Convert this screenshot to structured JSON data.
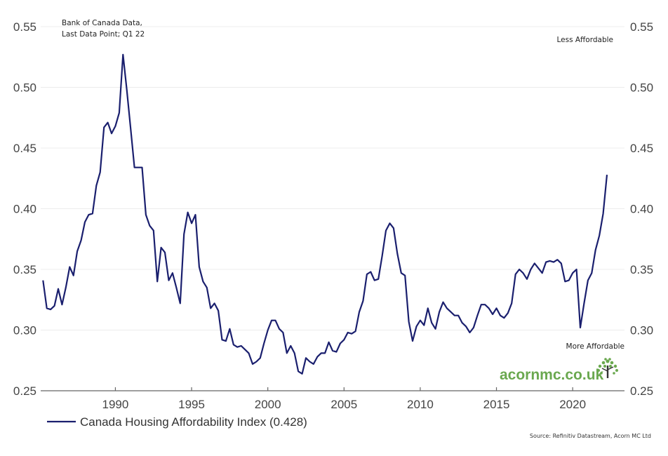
{
  "chart_data": {
    "type": "line",
    "title": "",
    "xlabel": "",
    "ylabel": "",
    "ylim": [
      0.25,
      0.55
    ],
    "y_ticks": [
      "0.25",
      "0.30",
      "0.35",
      "0.40",
      "0.45",
      "0.50",
      "0.55"
    ],
    "x_ticks": [
      "1990",
      "1995",
      "2000",
      "2005",
      "2010",
      "2015",
      "2020"
    ],
    "xlim": [
      1985.1,
      2023.4
    ],
    "grid": "horizontal",
    "y_axis_sides": "left-and-right",
    "legend_placement": "bottom-left",
    "annotations": {
      "top_left": [
        "Bank of Canada Data,",
        "Last Data Point; Q1 22"
      ],
      "top_right": "Less Affordable",
      "bottom_right": "More Affordable"
    },
    "series": [
      {
        "name": "Canada Housing Affordability Index (0.428)",
        "color": "#1a1f6e",
        "frequency": "quarterly",
        "start": 1985.25,
        "values": [
          0.341,
          0.318,
          0.317,
          0.32,
          0.334,
          0.321,
          0.335,
          0.352,
          0.345,
          0.365,
          0.374,
          0.389,
          0.395,
          0.396,
          0.419,
          0.43,
          0.467,
          0.471,
          0.462,
          0.468,
          0.479,
          0.527,
          0.498,
          0.466,
          0.434,
          0.434,
          0.434,
          0.395,
          0.386,
          0.382,
          0.34,
          0.368,
          0.364,
          0.341,
          0.347,
          0.335,
          0.322,
          0.379,
          0.397,
          0.388,
          0.395,
          0.352,
          0.34,
          0.335,
          0.318,
          0.322,
          0.316,
          0.292,
          0.291,
          0.301,
          0.288,
          0.286,
          0.287,
          0.284,
          0.281,
          0.272,
          0.274,
          0.277,
          0.289,
          0.3,
          0.308,
          0.308,
          0.301,
          0.298,
          0.281,
          0.287,
          0.281,
          0.266,
          0.264,
          0.277,
          0.274,
          0.272,
          0.278,
          0.281,
          0.281,
          0.29,
          0.283,
          0.282,
          0.289,
          0.292,
          0.298,
          0.297,
          0.299,
          0.315,
          0.324,
          0.346,
          0.348,
          0.341,
          0.342,
          0.361,
          0.382,
          0.388,
          0.384,
          0.363,
          0.347,
          0.345,
          0.307,
          0.291,
          0.303,
          0.308,
          0.304,
          0.318,
          0.306,
          0.301,
          0.315,
          0.323,
          0.318,
          0.315,
          0.312,
          0.312,
          0.306,
          0.303,
          0.298,
          0.302,
          0.312,
          0.321,
          0.321,
          0.318,
          0.313,
          0.318,
          0.312,
          0.31,
          0.314,
          0.322,
          0.346,
          0.35,
          0.347,
          0.342,
          0.35,
          0.355,
          0.351,
          0.347,
          0.356,
          0.357,
          0.356,
          0.358,
          0.355,
          0.34,
          0.341,
          0.347,
          0.35,
          0.302,
          0.322,
          0.341,
          0.347,
          0.366,
          0.378,
          0.396,
          0.428
        ]
      }
    ]
  },
  "legend": {
    "label": "Canada Housing Affordability Index (0.428)"
  },
  "source": "Source: Refinitiv Datastream, Acorn MC Ltd",
  "logo": {
    "text": "acornmc.co.uk",
    "color": "#6aa84f"
  }
}
